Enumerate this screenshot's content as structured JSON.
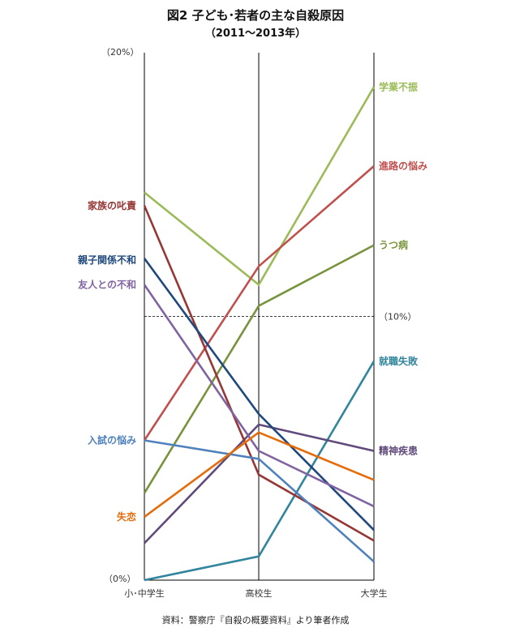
{
  "title": "図2 子ども･若者の主な自殺原因",
  "subtitle": "（2011～2013年）",
  "source": "資料：警察庁『自殺の概要資料』より筆者作成",
  "chart_data": {
    "type": "line",
    "categories": [
      "小･中学生",
      "高校生",
      "大学生"
    ],
    "y_tick_labels": [
      "（0%）",
      "（10%）",
      "（20%）"
    ],
    "ylim": [
      0,
      20
    ],
    "reference_line": 10,
    "grid": false,
    "series": [
      {
        "name": "学業不振",
        "color": "#9bbb59",
        "values": [
          14.7,
          11.2,
          18.7
        ]
      },
      {
        "name": "進路の悩み",
        "color": "#c0504d",
        "values": [
          5.3,
          11.9,
          15.7
        ]
      },
      {
        "name": "うつ病",
        "color": "#77933c",
        "values": [
          3.3,
          10.4,
          12.7
        ]
      },
      {
        "name": "就職失敗",
        "color": "#31859c",
        "values": [
          0.0,
          0.9,
          8.3
        ]
      },
      {
        "name": "精神疾患",
        "color": "#604a7b",
        "values": [
          1.4,
          5.9,
          4.9
        ]
      },
      {
        "name": "家族の叱責",
        "color": "#953735",
        "values": [
          14.2,
          4.0,
          1.5
        ]
      },
      {
        "name": "親子関係不和",
        "color": "#1f497d",
        "values": [
          12.2,
          6.3,
          1.9
        ]
      },
      {
        "name": "友人との不和",
        "color": "#8064a2",
        "values": [
          11.2,
          4.9,
          2.8
        ]
      },
      {
        "name": "入試の悩み",
        "color": "#4f81bd",
        "values": [
          5.3,
          4.6,
          0.7
        ]
      },
      {
        "name": "失恋",
        "color": "#e46c0a",
        "values": [
          2.4,
          5.6,
          3.8
        ]
      }
    ],
    "left_labels": [
      "家族の叱責",
      "親子関係不和",
      "友人との不和",
      "入試の悩み",
      "失恋"
    ],
    "right_labels": [
      "学業不振",
      "進路の悩み",
      "うつ病",
      "就職失敗",
      "精神疾患"
    ]
  }
}
